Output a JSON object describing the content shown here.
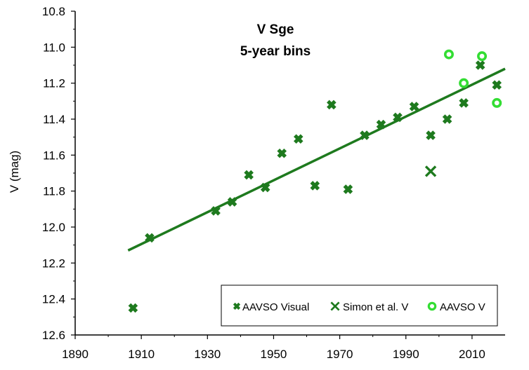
{
  "chart_data": {
    "type": "scatter",
    "title": "V Sge",
    "subtitle": "5-year bins",
    "xlabel": "",
    "ylabel": "V (mag)",
    "xlim": [
      1890,
      2020
    ],
    "ylim": [
      10.8,
      12.6
    ],
    "y_inverted": true,
    "x_ticks": [
      "1890",
      "1910",
      "1930",
      "1950",
      "1970",
      "1990",
      "2010"
    ],
    "y_ticks": [
      "10.8",
      "11.0",
      "11.2",
      "11.4",
      "11.6",
      "11.8",
      "12.0",
      "12.2",
      "12.4",
      "12.6"
    ],
    "grid": false,
    "legend_position": "bottom-right",
    "series": [
      {
        "name": "AAVSO Visual",
        "marker": "plus-diamond",
        "color": "#1e7a1e",
        "x": [
          1907.5,
          1912.5,
          1932.5,
          1937.5,
          1942.5,
          1947.5,
          1952.5,
          1957.5,
          1962.5,
          1967.5,
          1972.5,
          1977.5,
          1982.5,
          1987.5,
          1992.5,
          1997.5,
          2002.5,
          2007.5,
          2012.5,
          2017.5
        ],
        "y": [
          12.45,
          12.06,
          11.91,
          11.86,
          11.71,
          11.78,
          11.59,
          11.51,
          11.77,
          11.32,
          11.79,
          11.49,
          11.43,
          11.39,
          11.33,
          11.49,
          11.4,
          11.31,
          11.1,
          11.21
        ]
      },
      {
        "name": "Simon et al. V",
        "marker": "x",
        "color": "#1e7a1e",
        "x": [
          1997.5
        ],
        "y": [
          11.69
        ]
      },
      {
        "name": "AAVSO V",
        "marker": "open-circle",
        "color": "#33dd33",
        "x": [
          2003,
          2007.5,
          2013,
          2017.5
        ],
        "y": [
          11.04,
          11.2,
          11.05,
          11.31
        ]
      }
    ],
    "trendline": {
      "type": "linear",
      "color": "#1e7a1e",
      "x": [
        1906,
        2020
      ],
      "y": [
        12.13,
        11.12
      ]
    }
  }
}
